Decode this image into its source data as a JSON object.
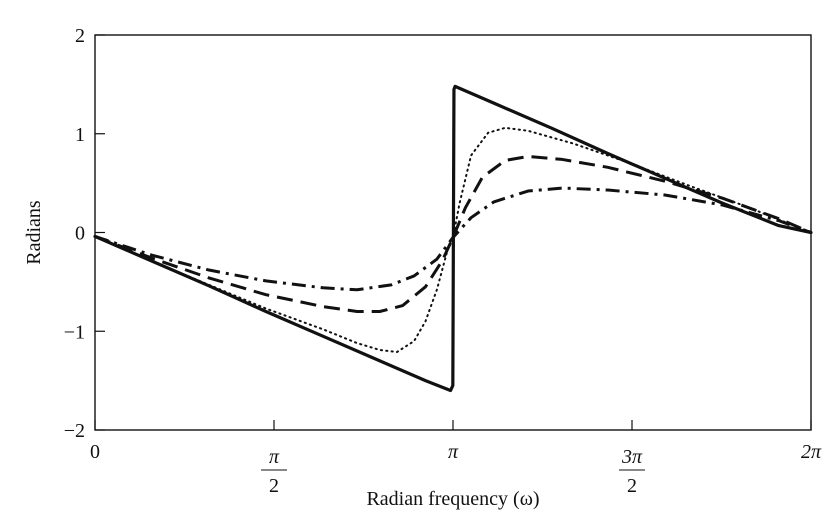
{
  "chart_data": {
    "type": "line",
    "xlabel": "Radian frequency (ω)",
    "ylabel": "Radians",
    "xlim": [
      0,
      6.283185307
    ],
    "ylim": [
      -2,
      2
    ],
    "grid": false,
    "legend": "none",
    "xticks": [
      {
        "value": 0,
        "kind": "plain",
        "text": "0"
      },
      {
        "value": 1.570796327,
        "kind": "frac",
        "num": "π",
        "den": "2"
      },
      {
        "value": 3.141592654,
        "kind": "plain",
        "text": "π"
      },
      {
        "value": 4.71238898,
        "kind": "frac",
        "num": "3π",
        "den": "2"
      },
      {
        "value": 6.283185307,
        "kind": "plain",
        "text": "2π"
      }
    ],
    "yticks": [
      {
        "value": 2,
        "text": "2"
      },
      {
        "value": 1,
        "text": "1"
      },
      {
        "value": 0,
        "text": "0"
      },
      {
        "value": -1,
        "text": "−1"
      },
      {
        "value": -2,
        "text": "−2"
      }
    ],
    "series": [
      {
        "style": "solid",
        "color": "#111111",
        "points": [
          [
            0,
            -0.04
          ],
          [
            0.5,
            -0.29
          ],
          [
            1.0,
            -0.54
          ],
          [
            1.5,
            -0.8
          ],
          [
            2.0,
            -1.05
          ],
          [
            2.5,
            -1.3
          ],
          [
            2.9,
            -1.5
          ],
          [
            3.12,
            -1.6
          ],
          [
            3.14,
            -1.55
          ],
          [
            3.15,
            1.45
          ],
          [
            3.16,
            1.48
          ],
          [
            3.5,
            1.31
          ],
          [
            4.0,
            1.06
          ],
          [
            4.5,
            0.8
          ],
          [
            5.0,
            0.55
          ],
          [
            5.5,
            0.3
          ],
          [
            6.0,
            0.07
          ],
          [
            6.283,
            0.0
          ]
        ]
      },
      {
        "style": "dotted",
        "color": "#111111",
        "points": [
          [
            0,
            -0.04
          ],
          [
            0.5,
            -0.29
          ],
          [
            1.0,
            -0.53
          ],
          [
            1.5,
            -0.77
          ],
          [
            2.0,
            -0.98
          ],
          [
            2.3,
            -1.12
          ],
          [
            2.5,
            -1.19
          ],
          [
            2.65,
            -1.21
          ],
          [
            2.8,
            -1.1
          ],
          [
            2.9,
            -0.9
          ],
          [
            3.0,
            -0.58
          ],
          [
            3.1,
            -0.15
          ],
          [
            3.1416,
            -0.05
          ],
          [
            3.2,
            0.3
          ],
          [
            3.3,
            0.78
          ],
          [
            3.45,
            1.01
          ],
          [
            3.6,
            1.06
          ],
          [
            3.8,
            1.03
          ],
          [
            4.2,
            0.9
          ],
          [
            4.7,
            0.7
          ],
          [
            5.2,
            0.48
          ],
          [
            5.7,
            0.27
          ],
          [
            6.283,
            0.0
          ]
        ]
      },
      {
        "style": "dashed",
        "color": "#111111",
        "points": [
          [
            0,
            -0.04
          ],
          [
            0.5,
            -0.26
          ],
          [
            1.0,
            -0.46
          ],
          [
            1.5,
            -0.63
          ],
          [
            2.0,
            -0.75
          ],
          [
            2.3,
            -0.8
          ],
          [
            2.5,
            -0.8
          ],
          [
            2.7,
            -0.74
          ],
          [
            2.9,
            -0.55
          ],
          [
            3.05,
            -0.28
          ],
          [
            3.1416,
            -0.05
          ],
          [
            3.25,
            0.25
          ],
          [
            3.4,
            0.56
          ],
          [
            3.6,
            0.73
          ],
          [
            3.8,
            0.77
          ],
          [
            4.1,
            0.74
          ],
          [
            4.5,
            0.66
          ],
          [
            5.0,
            0.52
          ],
          [
            5.5,
            0.35
          ],
          [
            6.0,
            0.14
          ],
          [
            6.283,
            0.0
          ]
        ]
      },
      {
        "style": "dashdot",
        "color": "#111111",
        "points": [
          [
            0,
            -0.04
          ],
          [
            0.5,
            -0.23
          ],
          [
            1.0,
            -0.38
          ],
          [
            1.5,
            -0.49
          ],
          [
            2.0,
            -0.56
          ],
          [
            2.3,
            -0.58
          ],
          [
            2.6,
            -0.53
          ],
          [
            2.8,
            -0.44
          ],
          [
            3.0,
            -0.27
          ],
          [
            3.1416,
            -0.05
          ],
          [
            3.3,
            0.15
          ],
          [
            3.5,
            0.31
          ],
          [
            3.8,
            0.42
          ],
          [
            4.1,
            0.45
          ],
          [
            4.5,
            0.43
          ],
          [
            5.0,
            0.38
          ],
          [
            5.5,
            0.28
          ],
          [
            6.0,
            0.12
          ],
          [
            6.283,
            0.0
          ]
        ]
      }
    ]
  }
}
